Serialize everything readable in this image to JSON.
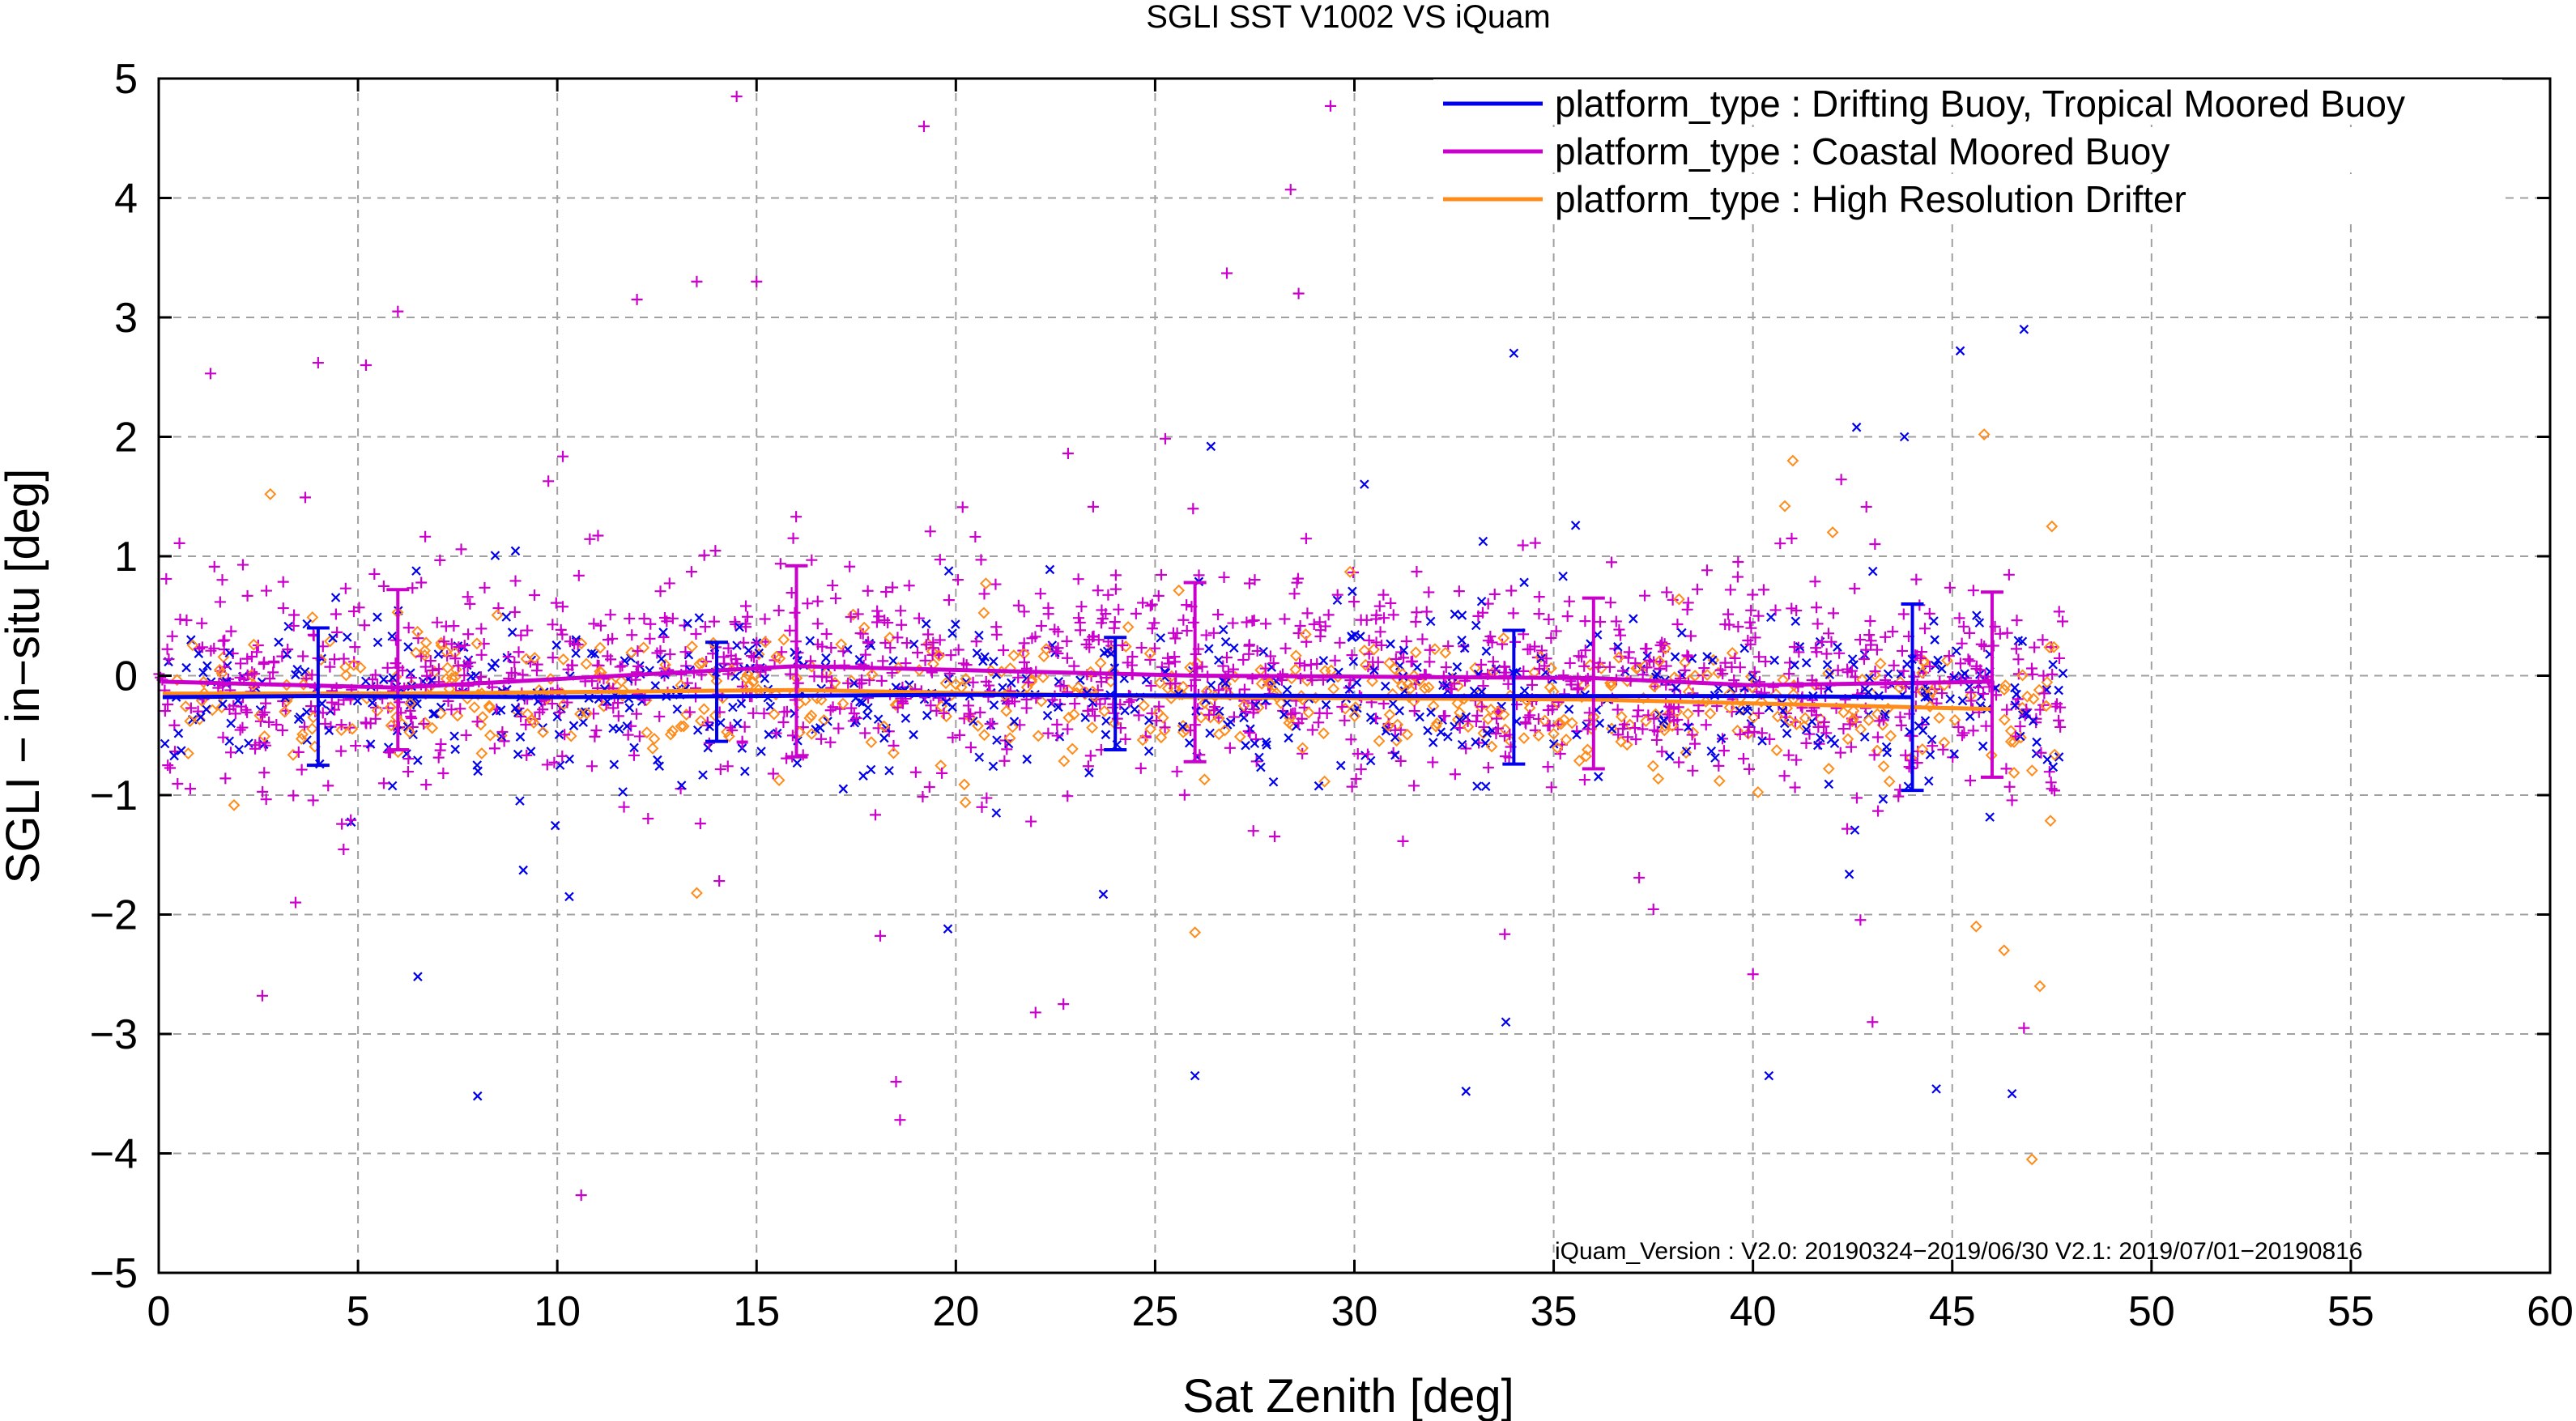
{
  "chart_data": {
    "type": "scatter",
    "title": "SGLI SST V1002 VS iQuam",
    "xlabel": "Sat Zenith [deg]",
    "ylabel": "SGLI − in−situ [deg]",
    "xlim": [
      0,
      60
    ],
    "ylim": [
      -5,
      5
    ],
    "x_ticks": [
      0,
      5,
      10,
      15,
      20,
      25,
      30,
      35,
      40,
      45,
      50,
      55,
      60
    ],
    "y_ticks": [
      5,
      4,
      3,
      2,
      1,
      0,
      -1,
      -2,
      -3,
      -4,
      -5
    ],
    "x_tick_labels": [
      "0",
      "5",
      "10",
      "15",
      "20",
      "25",
      "30",
      "35",
      "40",
      "45",
      "50",
      "55",
      "60"
    ],
    "y_tick_labels": [
      "5",
      "4",
      "3",
      "2",
      "1",
      "0",
      "−1",
      "−2",
      "−3",
      "−4",
      "−5"
    ],
    "grid": true,
    "legend_position": "top-right",
    "annotation": "iQuam_Version :  V2.0: 20190324−2019/06/30 V2.1: 2019/07/01−20190816",
    "series": [
      {
        "name": "platform_type : Drifting Buoy, Tropical Moored Buoy",
        "color": "#0000ee",
        "marker": "x",
        "mean_line": [
          [
            0.1,
            -0.18
          ],
          [
            4,
            -0.17
          ],
          [
            10,
            -0.18
          ],
          [
            20,
            -0.16
          ],
          [
            30,
            -0.17
          ],
          [
            35,
            -0.17
          ],
          [
            40,
            -0.17
          ],
          [
            44,
            -0.18
          ]
        ],
        "error_bars": [
          {
            "x": 4.0,
            "mean": -0.17,
            "low": -0.75,
            "high": 0.4
          },
          {
            "x": 14.0,
            "mean": -0.12,
            "low": -0.55,
            "high": 0.28
          },
          {
            "x": 24.0,
            "mean": -0.15,
            "low": -0.62,
            "high": 0.32
          },
          {
            "x": 34.0,
            "mean": -0.17,
            "low": -0.74,
            "high": 0.38
          },
          {
            "x": 44.0,
            "mean": -0.18,
            "low": -0.96,
            "high": 0.6
          }
        ],
        "outliers": [
          [
            8.0,
            -3.52
          ],
          [
            6.5,
            -2.52
          ],
          [
            10.3,
            -1.85
          ],
          [
            26.0,
            -3.35
          ],
          [
            33.8,
            -2.9
          ],
          [
            32.8,
            -3.48
          ],
          [
            40.4,
            -3.35
          ],
          [
            44.6,
            -3.46
          ],
          [
            46.5,
            -3.5
          ],
          [
            34.0,
            2.7
          ],
          [
            45.2,
            2.72
          ],
          [
            46.8,
            2.9
          ],
          [
            42.6,
            2.08
          ],
          [
            43.8,
            2.0
          ],
          [
            26.4,
            1.92
          ],
          [
            19.8,
            -2.12
          ],
          [
            23.7,
            -1.83
          ]
        ]
      },
      {
        "name": "platform_type : Coastal Moored Buoy",
        "color": "#cc00cc",
        "marker": "+",
        "mean_line": [
          [
            0.1,
            -0.05
          ],
          [
            6,
            -0.1
          ],
          [
            16,
            0.08
          ],
          [
            26,
            0.0
          ],
          [
            36,
            -0.02
          ],
          [
            40,
            -0.08
          ],
          [
            46,
            -0.05
          ]
        ],
        "error_bars": [
          {
            "x": 6.0,
            "mean": 0.05,
            "low": -0.62,
            "high": 0.72
          },
          {
            "x": 16.0,
            "mean": 0.1,
            "low": -0.68,
            "high": 0.92
          },
          {
            "x": 26.0,
            "mean": 0.0,
            "low": -0.72,
            "high": 0.78
          },
          {
            "x": 36.0,
            "mean": -0.02,
            "low": -0.78,
            "high": 0.65
          },
          {
            "x": 46.0,
            "mean": -0.05,
            "low": -0.85,
            "high": 0.7
          }
        ],
        "outliers": [
          [
            14.5,
            4.85
          ],
          [
            19.2,
            4.6
          ],
          [
            29.4,
            4.77
          ],
          [
            33.3,
            4.93
          ],
          [
            28.4,
            4.07
          ],
          [
            26.8,
            3.37
          ],
          [
            28.6,
            3.2
          ],
          [
            13.5,
            3.3
          ],
          [
            15.0,
            3.3
          ],
          [
            12.0,
            3.15
          ],
          [
            6.0,
            3.05
          ],
          [
            10.6,
            -4.35
          ],
          [
            18.6,
            -3.72
          ],
          [
            18.5,
            -3.4
          ],
          [
            22.0,
            -2.82
          ],
          [
            22.7,
            -2.75
          ],
          [
            2.6,
            -2.68
          ],
          [
            46.8,
            -2.95
          ],
          [
            43.0,
            -2.9
          ],
          [
            40.0,
            -2.5
          ],
          [
            5.2,
            2.6
          ],
          [
            4.0,
            2.62
          ],
          [
            1.3,
            2.53
          ]
        ]
      },
      {
        "name": "platform_type : High Resolution Drifter",
        "color": "#ff8c1a",
        "marker": "diamond",
        "mean_line": [
          [
            0.1,
            -0.15
          ],
          [
            6,
            -0.15
          ],
          [
            16,
            -0.12
          ],
          [
            26,
            -0.18
          ],
          [
            36,
            -0.2
          ],
          [
            46,
            -0.28
          ]
        ],
        "error_bars": [],
        "outliers": [
          [
            47.0,
            -4.05
          ],
          [
            47.2,
            -2.6
          ],
          [
            46.3,
            -2.3
          ],
          [
            45.6,
            -2.1
          ],
          [
            26.0,
            -2.15
          ],
          [
            13.5,
            -1.82
          ],
          [
            2.8,
            1.52
          ],
          [
            45.8,
            2.02
          ],
          [
            40.8,
            1.42
          ],
          [
            41.0,
            1.8
          ],
          [
            42.0,
            1.2
          ],
          [
            47.5,
            1.25
          ]
        ]
      }
    ]
  }
}
